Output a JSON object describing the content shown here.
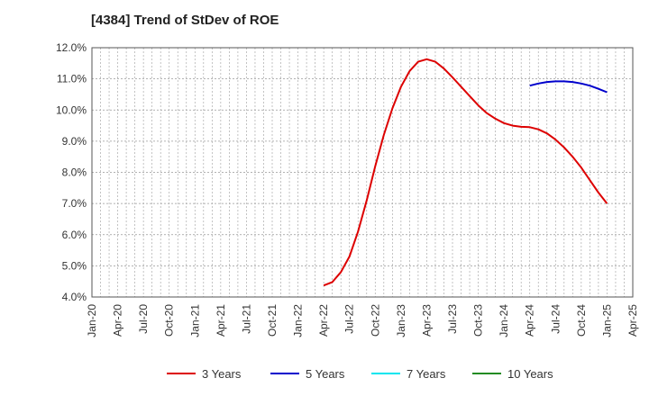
{
  "chart_data": {
    "type": "line",
    "title": "[4384]  Trend of StDev of ROE",
    "xlabel": "",
    "ylabel": "",
    "ylim": [
      4.0,
      12.0
    ],
    "y_ticks": [
      "4.0%",
      "5.0%",
      "6.0%",
      "7.0%",
      "8.0%",
      "9.0%",
      "10.0%",
      "11.0%",
      "12.0%"
    ],
    "x_ticks": [
      "Jan-20",
      "Apr-20",
      "Jul-20",
      "Oct-20",
      "Jan-21",
      "Apr-21",
      "Jul-21",
      "Oct-21",
      "Jan-22",
      "Apr-22",
      "Jul-22",
      "Oct-22",
      "Jan-23",
      "Apr-23",
      "Jul-23",
      "Oct-23",
      "Jan-24",
      "Apr-24",
      "Jul-24",
      "Oct-24",
      "Jan-25",
      "Apr-25"
    ],
    "grid": true,
    "legend_position": "bottom",
    "series": [
      {
        "name": "3 Years",
        "color": "#dd0000",
        "x": [
          "Apr-22",
          "May-22",
          "Jun-22",
          "Jul-22",
          "Aug-22",
          "Sep-22",
          "Oct-22",
          "Nov-22",
          "Dec-22",
          "Jan-23",
          "Feb-23",
          "Mar-23",
          "Apr-23",
          "May-23",
          "Jun-23",
          "Jul-23",
          "Aug-23",
          "Sep-23",
          "Oct-23",
          "Nov-23",
          "Dec-23",
          "Jan-24",
          "Feb-24",
          "Mar-24",
          "Apr-24",
          "May-24",
          "Jun-24",
          "Jul-24",
          "Aug-24",
          "Sep-24",
          "Oct-24",
          "Nov-24",
          "Dec-24",
          "Jan-25"
        ],
        "values": [
          4.37,
          4.48,
          4.8,
          5.3,
          6.1,
          7.1,
          8.2,
          9.2,
          10.05,
          10.75,
          11.25,
          11.55,
          11.63,
          11.55,
          11.33,
          11.05,
          10.75,
          10.45,
          10.15,
          9.9,
          9.72,
          9.58,
          9.5,
          9.46,
          9.45,
          9.38,
          9.25,
          9.05,
          8.8,
          8.5,
          8.15,
          7.75,
          7.35,
          7.0
        ]
      },
      {
        "name": "5 Years",
        "color": "#0000cc",
        "x": [
          "Apr-24",
          "May-24",
          "Jun-24",
          "Jul-24",
          "Aug-24",
          "Sep-24",
          "Oct-24",
          "Nov-24",
          "Dec-24",
          "Jan-25"
        ],
        "values": [
          10.78,
          10.85,
          10.9,
          10.92,
          10.92,
          10.9,
          10.85,
          10.78,
          10.68,
          10.57
        ]
      },
      {
        "name": "7 Years",
        "color": "#00e5ee",
        "x": [],
        "values": []
      },
      {
        "name": "10 Years",
        "color": "#228b22",
        "x": [],
        "values": []
      }
    ]
  }
}
